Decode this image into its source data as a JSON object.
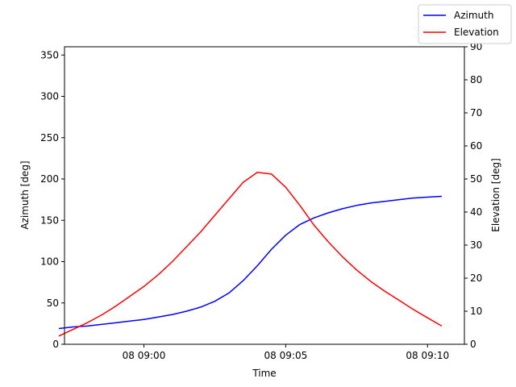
{
  "chart_data": {
    "type": "line",
    "xlabel": "Time",
    "xlim": [
      -2.8,
      11.3
    ],
    "x_tick_labels": [
      {
        "x": 0,
        "label": "08 09:00"
      },
      {
        "x": 5,
        "label": "08 09:05"
      },
      {
        "x": 10,
        "label": "08 09:10"
      }
    ],
    "y_left": {
      "label": "Azimuth [deg]",
      "ylim": [
        0,
        360
      ],
      "ticks": [
        0,
        50,
        100,
        150,
        200,
        250,
        300,
        350
      ]
    },
    "y_right": {
      "label": "Elevation [deg]",
      "ylim": [
        0,
        90
      ],
      "ticks": [
        0,
        10,
        20,
        30,
        40,
        50,
        60,
        70,
        80,
        90
      ]
    },
    "legend": {
      "position": "top-right"
    },
    "series": [
      {
        "name": "Azimuth",
        "axis": "left",
        "color": "#0000ff",
        "points": [
          [
            -3.0,
            19
          ],
          [
            -2.5,
            21
          ],
          [
            -2.0,
            22
          ],
          [
            -1.5,
            24
          ],
          [
            -1.0,
            26
          ],
          [
            -0.5,
            28
          ],
          [
            0.0,
            30
          ],
          [
            0.5,
            33
          ],
          [
            1.0,
            36
          ],
          [
            1.5,
            40
          ],
          [
            2.0,
            45
          ],
          [
            2.5,
            52
          ],
          [
            3.0,
            62
          ],
          [
            3.5,
            77
          ],
          [
            4.0,
            95
          ],
          [
            4.5,
            115
          ],
          [
            5.0,
            132
          ],
          [
            5.5,
            145
          ],
          [
            6.0,
            153
          ],
          [
            6.5,
            159
          ],
          [
            7.0,
            164
          ],
          [
            7.5,
            168
          ],
          [
            8.0,
            171
          ],
          [
            8.5,
            173
          ],
          [
            9.0,
            175
          ],
          [
            9.5,
            177
          ],
          [
            10.0,
            178
          ],
          [
            10.5,
            179
          ]
        ]
      },
      {
        "name": "Elevation",
        "axis": "right",
        "color": "#ff0000",
        "points": [
          [
            -3.0,
            2.5
          ],
          [
            -2.5,
            4.5
          ],
          [
            -2.0,
            6.5
          ],
          [
            -1.5,
            8.8
          ],
          [
            -1.0,
            11.5
          ],
          [
            -0.5,
            14.5
          ],
          [
            0.0,
            17.5
          ],
          [
            0.5,
            21.0
          ],
          [
            1.0,
            25.0
          ],
          [
            1.5,
            29.5
          ],
          [
            2.0,
            34.0
          ],
          [
            2.5,
            39.0
          ],
          [
            3.0,
            44.0
          ],
          [
            3.5,
            49.0
          ],
          [
            4.0,
            52.0
          ],
          [
            4.5,
            51.5
          ],
          [
            5.0,
            47.5
          ],
          [
            5.5,
            42.0
          ],
          [
            6.0,
            36.0
          ],
          [
            6.5,
            31.0
          ],
          [
            7.0,
            26.5
          ],
          [
            7.5,
            22.5
          ],
          [
            8.0,
            19.0
          ],
          [
            8.5,
            16.0
          ],
          [
            9.0,
            13.3
          ],
          [
            9.5,
            10.5
          ],
          [
            10.0,
            8.0
          ],
          [
            10.5,
            5.5
          ]
        ]
      }
    ]
  }
}
